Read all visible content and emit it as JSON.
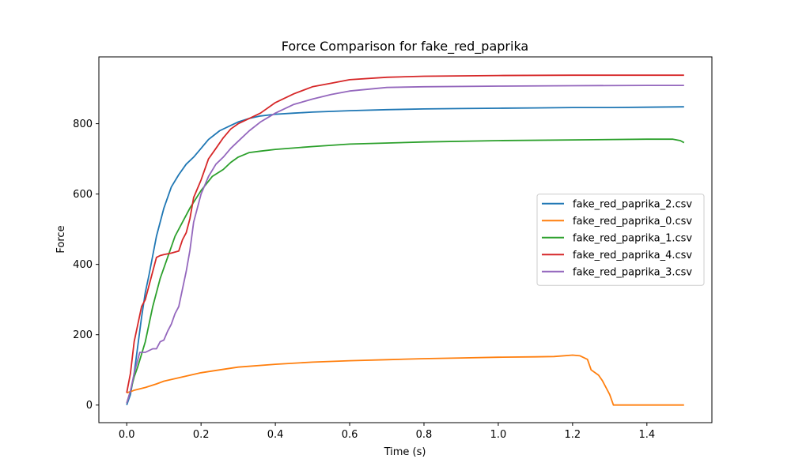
{
  "chart_data": {
    "type": "line",
    "title": "Force Comparison for fake_red_paprika",
    "xlabel": "Time (s)",
    "ylabel": "Force",
    "xlim": [
      -0.075,
      1.575
    ],
    "ylim": [
      -50,
      990
    ],
    "xticks": [
      0.0,
      0.2,
      0.4,
      0.6,
      0.8,
      1.0,
      1.2,
      1.4
    ],
    "xtick_labels": [
      "0.0",
      "0.2",
      "0.4",
      "0.6",
      "0.8",
      "1.0",
      "1.2",
      "1.4"
    ],
    "yticks": [
      0,
      200,
      400,
      600,
      800
    ],
    "ytick_labels": [
      "0",
      "200",
      "400",
      "600",
      "800"
    ],
    "grid": false,
    "legend_position": "center-right",
    "series": [
      {
        "name": "fake_red_paprika_2.csv",
        "color": "#1f77b4",
        "x": [
          0.0,
          0.01,
          0.02,
          0.03,
          0.04,
          0.05,
          0.06,
          0.08,
          0.1,
          0.12,
          0.14,
          0.16,
          0.18,
          0.2,
          0.22,
          0.25,
          0.28,
          0.3,
          0.33,
          0.36,
          0.4,
          0.45,
          0.5,
          0.6,
          0.7,
          0.8,
          0.9,
          1.0,
          1.1,
          1.2,
          1.3,
          1.4,
          1.5
        ],
        "y": [
          0,
          30,
          90,
          170,
          250,
          320,
          370,
          480,
          560,
          620,
          655,
          685,
          705,
          730,
          755,
          780,
          795,
          805,
          815,
          822,
          827,
          830,
          833,
          837,
          840,
          842,
          843,
          844,
          845,
          846,
          846,
          847,
          848
        ]
      },
      {
        "name": "fake_red_paprika_0.csv",
        "color": "#ff7f0e",
        "x": [
          0.0,
          0.01,
          0.02,
          0.05,
          0.08,
          0.1,
          0.15,
          0.2,
          0.25,
          0.3,
          0.4,
          0.5,
          0.6,
          0.7,
          0.8,
          0.9,
          1.0,
          1.1,
          1.15,
          1.2,
          1.22,
          1.24,
          1.25,
          1.27,
          1.28,
          1.29,
          1.3,
          1.31,
          1.35,
          1.4,
          1.5
        ],
        "y": [
          35,
          38,
          42,
          50,
          60,
          68,
          80,
          92,
          100,
          108,
          116,
          122,
          126,
          129,
          132,
          134,
          136,
          137,
          138,
          142,
          140,
          130,
          100,
          85,
          70,
          50,
          30,
          0,
          0,
          0,
          0
        ]
      },
      {
        "name": "fake_red_paprika_1.csv",
        "color": "#2ca02c",
        "x": [
          0.0,
          0.01,
          0.02,
          0.03,
          0.05,
          0.07,
          0.09,
          0.11,
          0.13,
          0.15,
          0.17,
          0.2,
          0.23,
          0.26,
          0.28,
          0.3,
          0.33,
          0.36,
          0.4,
          0.5,
          0.6,
          0.8,
          1.0,
          1.2,
          1.4,
          1.47,
          1.49,
          1.5
        ],
        "y": [
          5,
          40,
          80,
          110,
          180,
          280,
          360,
          420,
          480,
          520,
          560,
          610,
          650,
          670,
          690,
          705,
          718,
          722,
          727,
          735,
          742,
          748,
          752,
          754,
          756,
          756,
          752,
          746
        ]
      },
      {
        "name": "fake_red_paprika_4.csv",
        "color": "#d62728",
        "x": [
          0.0,
          0.01,
          0.02,
          0.03,
          0.04,
          0.05,
          0.06,
          0.07,
          0.08,
          0.09,
          0.1,
          0.12,
          0.14,
          0.15,
          0.16,
          0.17,
          0.18,
          0.2,
          0.22,
          0.24,
          0.26,
          0.28,
          0.3,
          0.33,
          0.36,
          0.4,
          0.45,
          0.5,
          0.55,
          0.6,
          0.7,
          0.8,
          1.0,
          1.2,
          1.4,
          1.5
        ],
        "y": [
          35,
          90,
          180,
          230,
          280,
          300,
          340,
          380,
          420,
          425,
          428,
          432,
          438,
          470,
          490,
          530,
          590,
          640,
          700,
          730,
          760,
          785,
          800,
          815,
          830,
          860,
          885,
          905,
          915,
          925,
          932,
          935,
          937,
          938,
          938,
          938
        ]
      },
      {
        "name": "fake_red_paprika_3.csv",
        "color": "#9467bd",
        "x": [
          0.0,
          0.01,
          0.02,
          0.03,
          0.035,
          0.05,
          0.07,
          0.08,
          0.09,
          0.1,
          0.11,
          0.12,
          0.13,
          0.14,
          0.15,
          0.16,
          0.17,
          0.18,
          0.19,
          0.2,
          0.22,
          0.24,
          0.26,
          0.28,
          0.3,
          0.33,
          0.36,
          0.4,
          0.45,
          0.5,
          0.55,
          0.6,
          0.7,
          0.8,
          1.0,
          1.2,
          1.4,
          1.5
        ],
        "y": [
          5,
          40,
          90,
          130,
          150,
          150,
          160,
          160,
          180,
          185,
          210,
          230,
          260,
          280,
          330,
          380,
          440,
          520,
          560,
          600,
          650,
          685,
          705,
          730,
          750,
          780,
          805,
          830,
          855,
          870,
          883,
          893,
          903,
          905,
          907,
          908,
          909,
          909
        ]
      }
    ]
  }
}
